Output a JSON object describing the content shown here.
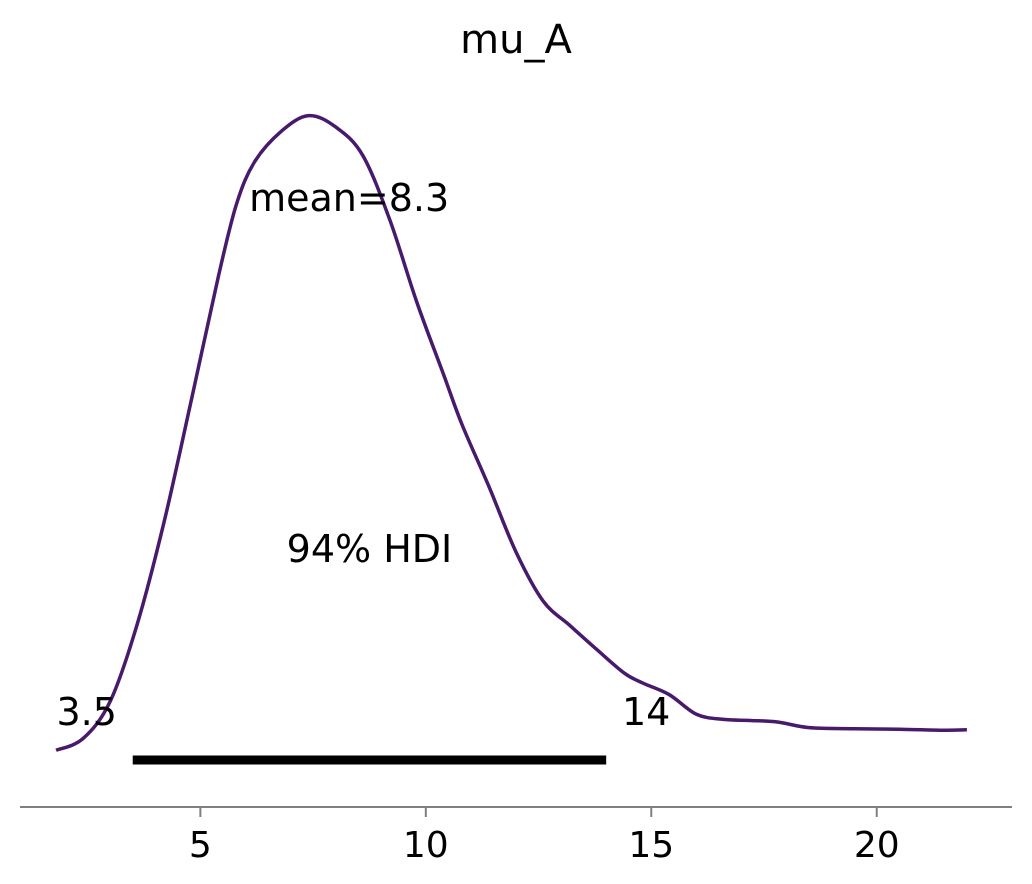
{
  "chart_data": {
    "type": "line",
    "title": "mu_A",
    "xlabel": "",
    "ylabel": "",
    "xlim": [
      1.0,
      23.0
    ],
    "ylim": [
      0.0,
      0.145
    ],
    "xticks": [
      5,
      10,
      15,
      20
    ],
    "xtick_labels": [
      "5",
      "10",
      "15",
      "20"
    ],
    "grid": false,
    "series": [
      {
        "color": "#481a6c",
        "x": [
          1.8,
          2.4,
          3.0,
          3.6,
          4.2,
          4.8,
          5.4,
          5.8,
          6.2,
          6.8,
          7.4,
          8.0,
          8.6,
          9.2,
          9.8,
          10.4,
          10.8,
          11.4,
          12.0,
          12.6,
          13.2,
          13.8,
          14.4,
          14.8,
          15.4,
          16.0,
          16.6,
          17.2,
          17.8,
          18.5,
          19.5,
          20.5,
          21.5,
          22.0
        ],
        "y": [
          0.011,
          0.0133,
          0.0205,
          0.0355,
          0.0555,
          0.079,
          0.103,
          0.117,
          0.1252,
          0.1312,
          0.1342,
          0.132,
          0.1265,
          0.114,
          0.098,
          0.0838,
          0.0743,
          0.0622,
          0.0495,
          0.04,
          0.0352,
          0.0305,
          0.026,
          0.0241,
          0.0218,
          0.018,
          0.017,
          0.0168,
          0.0165,
          0.0154,
          0.0152,
          0.0151,
          0.0149,
          0.015
        ]
      }
    ],
    "hdi": {
      "label": "94% HDI",
      "low": 3.5,
      "high": 14,
      "low_label": "3.5",
      "high_label": "14",
      "color": "#000000"
    },
    "mean_label": "mean=8.3",
    "mean": 8.3
  }
}
